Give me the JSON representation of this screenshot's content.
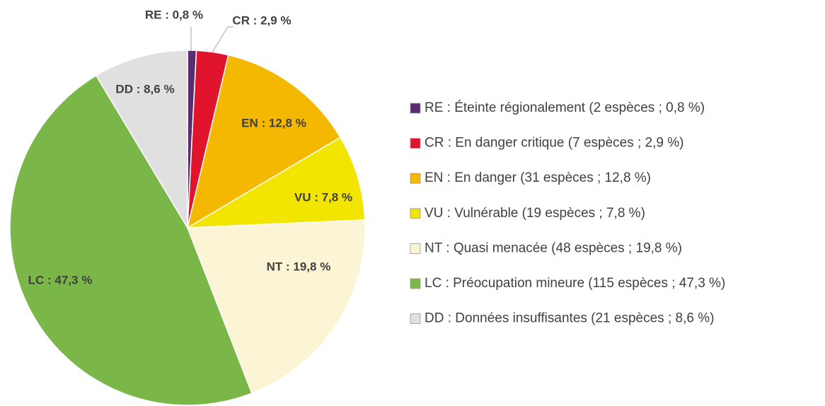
{
  "chart_data": {
    "type": "pie",
    "categories": [
      "RE : Éteinte régionalement (2 espèces ; 0,8 %)",
      "CR : En danger critique (7 espèces ; 2,9 %)",
      "EN : En danger (31 espèces ; 12,8 %)",
      "VU : Vulnérable (19 espèces ; 7,8 %)",
      "NT : Quasi menacée (48 espèces ; 19,8 %)",
      "LC : Préocupation mineure (115 espèces ; 47,3 %)",
      "DD : Données insuffisantes (21 espèces ; 8,6 %)"
    ],
    "values": [
      0.8,
      2.9,
      12.8,
      7.8,
      19.8,
      47.3,
      8.6
    ],
    "value_labels": [
      "RE : 0,8 %",
      "CR : 2,9 %",
      "EN : 12,8 %",
      "VU : 7,8 %",
      "NT : 19,8 %",
      "LC : 47,3 %",
      "DD : 8,6 %"
    ],
    "colors": [
      "#5b2d6e",
      "#e0142c",
      "#f5b800",
      "#f2e600",
      "#fbf5d6",
      "#7ab648",
      "#e0e0e0"
    ]
  }
}
